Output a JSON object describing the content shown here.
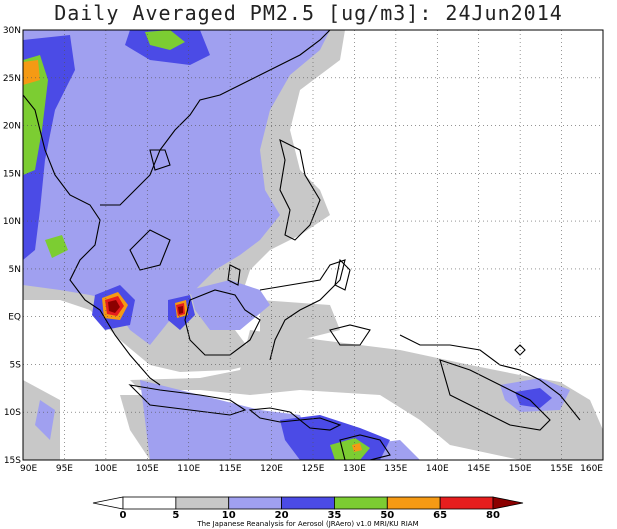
{
  "title": "Daily Averaged PM2.5 [ug/m3]: 24Jun2014",
  "map": {
    "lat_labels": [
      "30N",
      "25N",
      "20N",
      "15N",
      "10N",
      "5N",
      "EQ",
      "5S",
      "10S",
      "15S"
    ],
    "lon_labels": [
      "90E",
      "95E",
      "100E",
      "105E",
      "110E",
      "115E",
      "120E",
      "125E",
      "130E",
      "135E",
      "140E",
      "145E",
      "150E",
      "155E",
      "160E"
    ],
    "lon_range": [
      90,
      160
    ],
    "lat_range": [
      -15,
      30
    ],
    "grid": "dotted"
  },
  "colorbar": {
    "levels": [
      "0",
      "5",
      "10",
      "20",
      "35",
      "50",
      "65",
      "80"
    ],
    "colors": [
      "#ffffff",
      "#ffffff",
      "#c8c8c8",
      "#a0a0f0",
      "#4b4be6",
      "#7ccd32",
      "#f59a14",
      "#e61e1e",
      "#8b0000"
    ]
  },
  "credit": "The Japanese Reanalysis for Aerosol (JRAero) v1.0 MRI/KU RIAM"
}
